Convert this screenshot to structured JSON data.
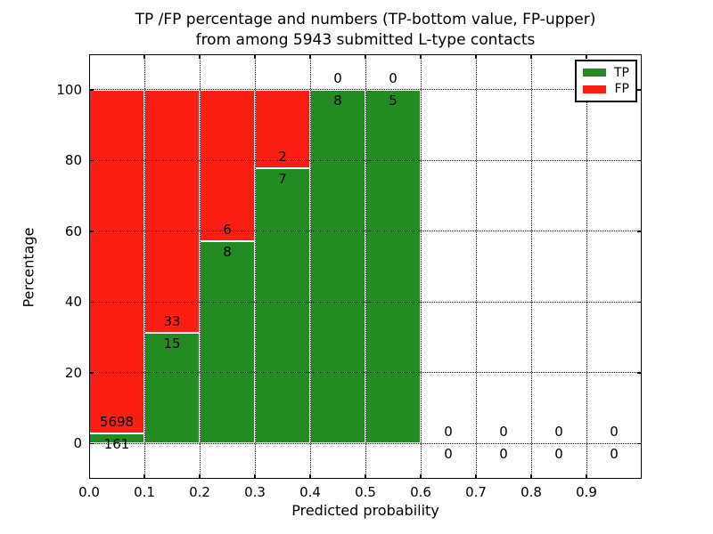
{
  "chart_data": {
    "type": "bar",
    "stacked": true,
    "title_line1": "TP /FP percentage and numbers (TP-bottom value, FP-upper)",
    "title_line2": "from among 5943 submitted L-type contacts",
    "xlabel": "Predicted probability",
    "ylabel": "Percentage",
    "xlim": [
      0.0,
      1.0
    ],
    "ylim": [
      -10,
      110
    ],
    "x_ticks": [
      {
        "value": 0.0,
        "label": "0.0"
      },
      {
        "value": 0.1,
        "label": "0.1"
      },
      {
        "value": 0.2,
        "label": "0.2"
      },
      {
        "value": 0.3,
        "label": "0.3"
      },
      {
        "value": 0.4,
        "label": "0.4"
      },
      {
        "value": 0.5,
        "label": "0.5"
      },
      {
        "value": 0.6,
        "label": "0.6"
      },
      {
        "value": 0.7,
        "label": "0.7"
      },
      {
        "value": 0.8,
        "label": "0.8"
      },
      {
        "value": 0.9,
        "label": "0.9"
      }
    ],
    "y_ticks": [
      {
        "value": 0,
        "label": "0"
      },
      {
        "value": 20,
        "label": "20"
      },
      {
        "value": 40,
        "label": "40"
      },
      {
        "value": 60,
        "label": "60"
      },
      {
        "value": 80,
        "label": "80"
      },
      {
        "value": 100,
        "label": "100"
      }
    ],
    "grid": "dotted, drawn over bars",
    "legend": {
      "position": "upper-right",
      "items": [
        {
          "name": "tp",
          "label": "TP",
          "color": "#228b22"
        },
        {
          "name": "fp",
          "label": "FP",
          "color": "#fc1d13"
        }
      ]
    },
    "colors": {
      "tp": "#228b22",
      "fp": "#fc1d13",
      "bar_edge": "#ffffff"
    },
    "bins": [
      {
        "x0": 0.0,
        "x1": 0.1,
        "tp_count": 161,
        "fp_count": 5698,
        "tp_pct": 2.75,
        "fp_pct": 97.25
      },
      {
        "x0": 0.1,
        "x1": 0.2,
        "tp_count": 15,
        "fp_count": 33,
        "tp_pct": 31.25,
        "fp_pct": 68.75
      },
      {
        "x0": 0.2,
        "x1": 0.3,
        "tp_count": 8,
        "fp_count": 6,
        "tp_pct": 57.14,
        "fp_pct": 42.86
      },
      {
        "x0": 0.3,
        "x1": 0.4,
        "tp_count": 7,
        "fp_count": 2,
        "tp_pct": 77.78,
        "fp_pct": 22.22
      },
      {
        "x0": 0.4,
        "x1": 0.5,
        "tp_count": 8,
        "fp_count": 0,
        "tp_pct": 100,
        "fp_pct": 0
      },
      {
        "x0": 0.5,
        "x1": 0.6,
        "tp_count": 5,
        "fp_count": 0,
        "tp_pct": 100,
        "fp_pct": 0
      },
      {
        "x0": 0.6,
        "x1": 0.7,
        "tp_count": 0,
        "fp_count": 0,
        "tp_pct": 0,
        "fp_pct": 0
      },
      {
        "x0": 0.7,
        "x1": 0.8,
        "tp_count": 0,
        "fp_count": 0,
        "tp_pct": 0,
        "fp_pct": 0
      },
      {
        "x0": 0.8,
        "x1": 0.9,
        "tp_count": 0,
        "fp_count": 0,
        "tp_pct": 0,
        "fp_pct": 0
      },
      {
        "x0": 0.9,
        "x1": 1.0,
        "tp_count": 0,
        "fp_count": 0,
        "tp_pct": 0,
        "fp_pct": 0
      }
    ]
  }
}
